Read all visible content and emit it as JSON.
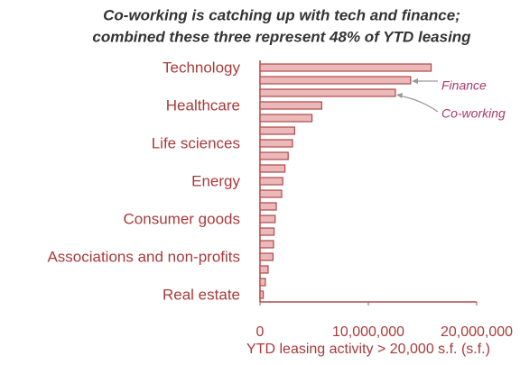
{
  "chart_data": {
    "type": "bar",
    "orientation": "horizontal",
    "title": "Co-working is catching up with tech and finance;",
    "subtitle": "combined these three represent 48% of YTD leasing",
    "categories": [
      "Technology",
      null,
      null,
      "Healthcare",
      null,
      null,
      "Life sciences",
      null,
      null,
      "Energy",
      null,
      null,
      "Consumer goods",
      null,
      null,
      "Associations and non-profits",
      null,
      null,
      "Real estate"
    ],
    "values": [
      15800000,
      13900000,
      12500000,
      5700000,
      4800000,
      3200000,
      3000000,
      2600000,
      2300000,
      2100000,
      2000000,
      1500000,
      1400000,
      1300000,
      1250000,
      1200000,
      750000,
      500000,
      300000
    ],
    "color": "#ebb9b9",
    "edge_color": "#b04848",
    "annotations": [
      "Finance",
      "Co-working"
    ],
    "x_label": "YTD leasing activity > 20,000 s.f. (s.f.)",
    "xlim": [
      0,
      20000000
    ],
    "xticks": [
      0,
      {
        "value": 10000000,
        "label": "10,000,000"
      },
      {
        "value": 20000000,
        "label": "20,000,000"
      }
    ],
    "grid": false
  }
}
